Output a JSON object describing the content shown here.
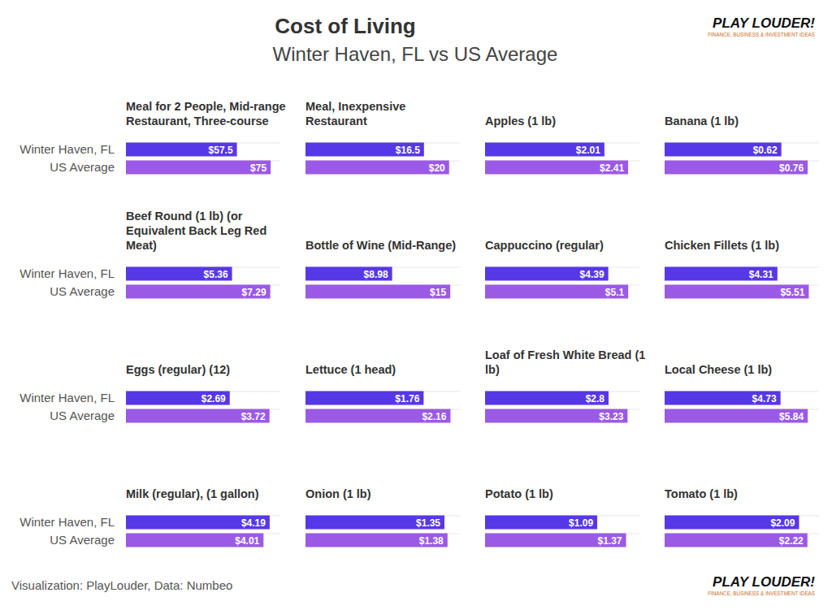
{
  "header": {
    "title": "Cost of Living",
    "subtitle": "Winter Haven, FL vs US Average"
  },
  "footer": {
    "credit": "Visualization: PlayLouder, Data: Numbeo"
  },
  "logo": {
    "name": "PLAY LOUDER!",
    "tagline": "FINANCE, BUSINESS & INVESTMENT IDEAS"
  },
  "chart_data": [
    {
      "type": "bar",
      "orientation": "horizontal",
      "title": "Meal for 2 People, Mid-range Restaurant, Three-course",
      "categories": [
        "Winter Haven, FL",
        "US Average"
      ],
      "values": [
        57.5,
        75
      ],
      "value_labels": [
        "$57.5",
        "$75"
      ],
      "colors": [
        "#5638e6",
        "#9a5ae6"
      ],
      "data_labels": true,
      "xlim": [
        0,
        80
      ],
      "tick_labels": "y"
    },
    {
      "type": "bar",
      "orientation": "horizontal",
      "title": "Meal, Inexpensive Restaurant",
      "categories": [
        "Winter Haven, FL",
        "US Average"
      ],
      "values": [
        16.5,
        20
      ],
      "value_labels": [
        "$16.5",
        "$20"
      ],
      "colors": [
        "#5638e6",
        "#9a5ae6"
      ],
      "data_labels": true,
      "xlim": [
        0,
        21.5
      ],
      "tick_labels": false
    },
    {
      "type": "bar",
      "orientation": "horizontal",
      "title": "Apples (1 lb)",
      "categories": [
        "Winter Haven, FL",
        "US Average"
      ],
      "values": [
        2.01,
        2.41
      ],
      "value_labels": [
        "$2.01",
        "$2.41"
      ],
      "colors": [
        "#5638e6",
        "#9a5ae6"
      ],
      "data_labels": true,
      "xlim": [
        0,
        2.6
      ],
      "tick_labels": false
    },
    {
      "type": "bar",
      "orientation": "horizontal",
      "title": "Banana (1 lb)",
      "categories": [
        "Winter Haven, FL",
        "US Average"
      ],
      "values": [
        0.62,
        0.76
      ],
      "value_labels": [
        "$0.62",
        "$0.76"
      ],
      "colors": [
        "#5638e6",
        "#9a5ae6"
      ],
      "data_labels": true,
      "xlim": [
        0,
        0.82
      ],
      "tick_labels": false
    },
    {
      "type": "bar",
      "orientation": "horizontal",
      "title": "Beef Round (1 lb) (or Equivalent Back Leg Red Meat)",
      "categories": [
        "Winter Haven, FL",
        "US Average"
      ],
      "values": [
        5.36,
        7.29
      ],
      "value_labels": [
        "$5.36",
        "$7.29"
      ],
      "colors": [
        "#5638e6",
        "#9a5ae6"
      ],
      "data_labels": true,
      "xlim": [
        0,
        7.8
      ],
      "tick_labels": "y"
    },
    {
      "type": "bar",
      "orientation": "horizontal",
      "title": "Bottle of Wine (Mid-Range)",
      "categories": [
        "Winter Haven, FL",
        "US Average"
      ],
      "values": [
        8.98,
        15
      ],
      "value_labels": [
        "$8.98",
        "$15"
      ],
      "colors": [
        "#5638e6",
        "#9a5ae6"
      ],
      "data_labels": true,
      "xlim": [
        0,
        16
      ],
      "tick_labels": false
    },
    {
      "type": "bar",
      "orientation": "horizontal",
      "title": "Cappuccino (regular)",
      "categories": [
        "Winter Haven, FL",
        "US Average"
      ],
      "values": [
        4.39,
        5.1
      ],
      "value_labels": [
        "$4.39",
        "$5.1"
      ],
      "colors": [
        "#5638e6",
        "#9a5ae6"
      ],
      "data_labels": true,
      "xlim": [
        0,
        5.5
      ],
      "tick_labels": false
    },
    {
      "type": "bar",
      "orientation": "horizontal",
      "title": "Chicken Fillets (1 lb)",
      "categories": [
        "Winter Haven, FL",
        "US Average"
      ],
      "values": [
        4.31,
        5.51
      ],
      "value_labels": [
        "$4.31",
        "$5.51"
      ],
      "colors": [
        "#5638e6",
        "#9a5ae6"
      ],
      "data_labels": true,
      "xlim": [
        0,
        5.9
      ],
      "tick_labels": false
    },
    {
      "type": "bar",
      "orientation": "horizontal",
      "title": "Eggs (regular) (12)",
      "categories": [
        "Winter Haven, FL",
        "US Average"
      ],
      "values": [
        2.69,
        3.72
      ],
      "value_labels": [
        "$2.69",
        "$3.72"
      ],
      "colors": [
        "#5638e6",
        "#9a5ae6"
      ],
      "data_labels": true,
      "xlim": [
        0,
        4
      ],
      "tick_labels": "y"
    },
    {
      "type": "bar",
      "orientation": "horizontal",
      "title": "Lettuce (1 head)",
      "categories": [
        "Winter Haven, FL",
        "US Average"
      ],
      "values": [
        1.76,
        2.16
      ],
      "value_labels": [
        "$1.76",
        "$2.16"
      ],
      "colors": [
        "#5638e6",
        "#9a5ae6"
      ],
      "data_labels": true,
      "xlim": [
        0,
        2.3
      ],
      "tick_labels": false
    },
    {
      "type": "bar",
      "orientation": "horizontal",
      "title": "Loaf of Fresh White Bread (1 lb)",
      "categories": [
        "Winter Haven, FL",
        "US Average"
      ],
      "values": [
        2.8,
        3.23
      ],
      "value_labels": [
        "$2.8",
        "$3.23"
      ],
      "colors": [
        "#5638e6",
        "#9a5ae6"
      ],
      "data_labels": true,
      "xlim": [
        0,
        3.5
      ],
      "tick_labels": false
    },
    {
      "type": "bar",
      "orientation": "horizontal",
      "title": "Local Cheese (1 lb)",
      "categories": [
        "Winter Haven, FL",
        "US Average"
      ],
      "values": [
        4.73,
        5.84
      ],
      "value_labels": [
        "$4.73",
        "$5.84"
      ],
      "colors": [
        "#5638e6",
        "#9a5ae6"
      ],
      "data_labels": true,
      "xlim": [
        0,
        6.3
      ],
      "tick_labels": false
    },
    {
      "type": "bar",
      "orientation": "horizontal",
      "title": "Milk (regular), (1 gallon)",
      "categories": [
        "Winter Haven, FL",
        "US Average"
      ],
      "values": [
        4.19,
        4.01
      ],
      "value_labels": [
        "$4.19",
        "$4.01"
      ],
      "colors": [
        "#5638e6",
        "#9a5ae6"
      ],
      "data_labels": true,
      "xlim": [
        0,
        4.5
      ],
      "tick_labels": "y"
    },
    {
      "type": "bar",
      "orientation": "horizontal",
      "title": "Onion (1 lb)",
      "categories": [
        "Winter Haven, FL",
        "US Average"
      ],
      "values": [
        1.35,
        1.38
      ],
      "value_labels": [
        "$1.35",
        "$1.38"
      ],
      "colors": [
        "#5638e6",
        "#9a5ae6"
      ],
      "data_labels": true,
      "xlim": [
        0,
        1.5
      ],
      "tick_labels": false
    },
    {
      "type": "bar",
      "orientation": "horizontal",
      "title": "Potato (1 lb)",
      "categories": [
        "Winter Haven, FL",
        "US Average"
      ],
      "values": [
        1.09,
        1.37
      ],
      "value_labels": [
        "$1.09",
        "$1.37"
      ],
      "colors": [
        "#5638e6",
        "#9a5ae6"
      ],
      "data_labels": true,
      "xlim": [
        0,
        1.5
      ],
      "tick_labels": false
    },
    {
      "type": "bar",
      "orientation": "horizontal",
      "title": "Tomato (1 lb)",
      "categories": [
        "Winter Haven, FL",
        "US Average"
      ],
      "values": [
        2.09,
        2.22
      ],
      "value_labels": [
        "$2.09",
        "$2.22"
      ],
      "colors": [
        "#5638e6",
        "#9a5ae6"
      ],
      "data_labels": true,
      "xlim": [
        0,
        2.4
      ],
      "tick_labels": false
    }
  ]
}
